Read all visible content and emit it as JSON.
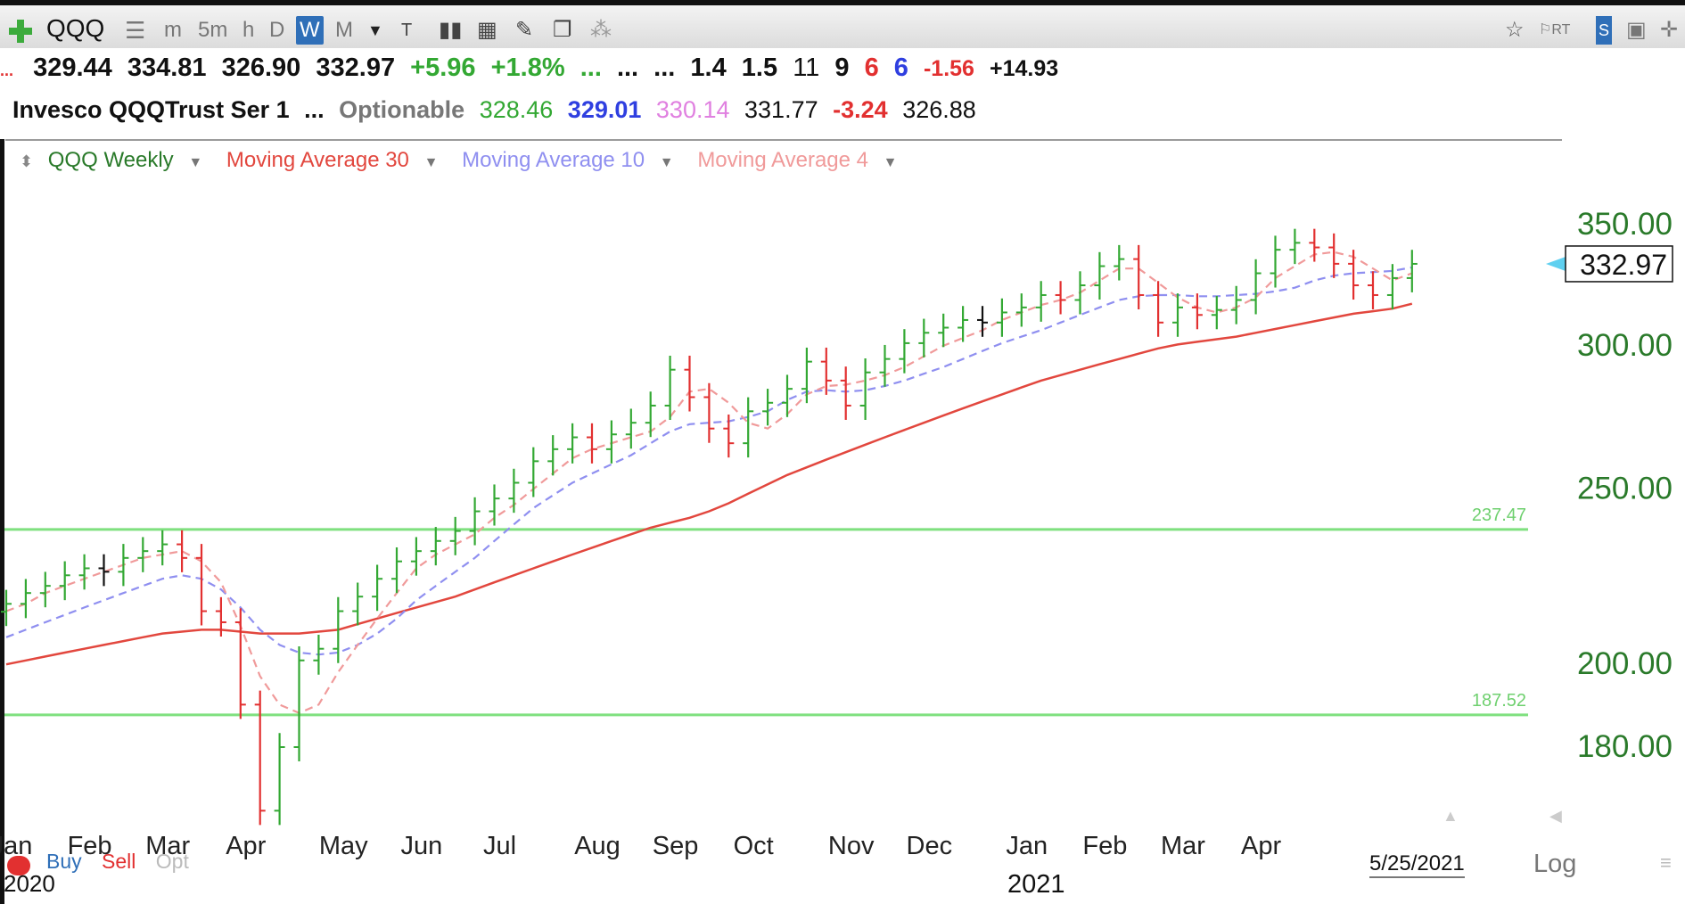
{
  "toolbar": {
    "symbol": "QQQ",
    "intervals": [
      "m",
      "5m",
      "h",
      "D",
      "W",
      "M"
    ],
    "active_interval": "W"
  },
  "quote_line1": {
    "open": "329.44",
    "high": "334.81",
    "low": "326.90",
    "close": "332.97",
    "change": "+5.96",
    "change_pct": "+1.8%",
    "dots1": "...",
    "dots2": "...",
    "dots3": "...",
    "v1": "1.4",
    "v2": "1.5",
    "v3": "11",
    "v4": "9",
    "v5": "6",
    "v6": "6",
    "v7": "-1.56",
    "v8": "+14.93"
  },
  "quote_line2": {
    "name": "Invesco QQQTrust Ser 1",
    "dots": "...",
    "optionable": "Optionable",
    "ma_a": "328.46",
    "ma_b": "329.01",
    "ma_c": "330.14",
    "v_d": "331.77",
    "v_e": "-3.24",
    "v_f": "326.88"
  },
  "legend": {
    "series": "QQQ Weekly",
    "ma30": "Moving Average 30",
    "ma10": "Moving Average 10",
    "ma4": "Moving Average 4"
  },
  "colors": {
    "up": "#33a833",
    "down": "#e23030",
    "neutral": "#111111",
    "ma30": "#e2473e",
    "ma10": "#8f8ff0",
    "ma4": "#f09a9a",
    "hline": "#7fe07f",
    "axis_label": "#2a7a2a"
  },
  "bottom": {
    "buy": "Buy",
    "sell": "Sell",
    "opt": "Opt",
    "date": "5/25/2021",
    "log": "Log",
    "year_left": "2020",
    "year_right": "2021"
  },
  "chart_data": {
    "type": "ohlc",
    "scale": "log",
    "y_ticks": [
      180,
      200,
      250,
      300,
      350
    ],
    "y_tick_labels": [
      "180.00",
      "200.00",
      "250.00",
      "300.00",
      "350.00"
    ],
    "last_price_label": "332.97",
    "last_price": 332.97,
    "horizontal_lines": [
      {
        "value": 237.47,
        "label": "237.47"
      },
      {
        "value": 187.52,
        "label": "187.52"
      }
    ],
    "x_month_labels": [
      "Jan",
      "Feb",
      "Mar",
      "Apr",
      "May",
      "Jun",
      "Jul",
      "Aug",
      "Sep",
      "Oct",
      "Nov",
      "Dec",
      "Jan",
      "Feb",
      "Mar",
      "Apr"
    ],
    "x_month_weeks": [
      0,
      4,
      8,
      12,
      17,
      21,
      25,
      30,
      34,
      38,
      43,
      47,
      52,
      56,
      60,
      64
    ],
    "closes": [
      216,
      219,
      221,
      224,
      226,
      225,
      229,
      231,
      233,
      229,
      214,
      211,
      190,
      166,
      180,
      201,
      204,
      214,
      218,
      223,
      228,
      231,
      234,
      237,
      243,
      247,
      252,
      259,
      263,
      267,
      263,
      268,
      272,
      278,
      291,
      281,
      270,
      265,
      276,
      279,
      284,
      294,
      287,
      278,
      290,
      295,
      301,
      305,
      307,
      310,
      309,
      313,
      315,
      320,
      318,
      324,
      332,
      335,
      320,
      309,
      315,
      312,
      314,
      318,
      329,
      339,
      342,
      340,
      333,
      324,
      320,
      327,
      332.97
    ],
    "ma30": [
      200.0,
      201.0,
      202.0,
      203.0,
      204.0,
      205.0,
      206.0,
      207.0,
      208.0,
      208.5,
      209.0,
      209.0,
      208.5,
      208.0,
      208.0,
      208.0,
      208.5,
      209.0,
      210.5,
      212.0,
      213.5,
      215.0,
      216.5,
      218.0,
      220.0,
      222.0,
      224.0,
      226.0,
      228.0,
      230.0,
      232.0,
      234.0,
      236.0,
      238.0,
      239.5,
      241.0,
      243.0,
      245.5,
      248.5,
      251.5,
      254.5,
      257.0,
      259.5,
      262.0,
      264.5,
      267.0,
      269.5,
      272.0,
      274.5,
      277.0,
      279.5,
      282.0,
      284.5,
      287.0,
      289.0,
      291.0,
      293.0,
      295.0,
      297.0,
      299.0,
      300.5,
      301.5,
      302.5,
      303.5,
      305.0,
      306.5,
      308.0,
      309.5,
      311.0,
      312.5,
      313.5,
      314.5,
      316.5
    ],
    "ma10": [
      207,
      209,
      211,
      213,
      215,
      217,
      219,
      221,
      223,
      224,
      223,
      220,
      215,
      209,
      205,
      203,
      202.5,
      203,
      205,
      208,
      212,
      217,
      221,
      225,
      229,
      234,
      239,
      244,
      248,
      252,
      255,
      258,
      261,
      265,
      269,
      271.5,
      272,
      272.5,
      274,
      276,
      280,
      283,
      283.5,
      283,
      283.5,
      285,
      287,
      289.5,
      292,
      295,
      298,
      301,
      303.5,
      306,
      309,
      312,
      315,
      318,
      319.5,
      320,
      320,
      319.5,
      319.5,
      320,
      320.5,
      321.5,
      323,
      326,
      328,
      329,
      329.5,
      330,
      331.5
    ],
    "ma4": [
      214,
      216,
      219,
      221,
      223,
      225,
      227,
      229,
      230,
      231,
      228,
      222,
      210,
      197,
      190,
      188,
      190,
      198,
      205,
      212,
      219,
      226,
      230,
      233,
      236,
      241,
      245,
      250,
      255,
      260,
      263,
      265,
      267,
      269,
      274,
      283,
      284,
      279,
      272,
      270,
      275,
      282,
      285,
      285.5,
      287,
      289,
      292,
      296,
      300,
      303,
      306,
      310,
      313,
      316,
      318,
      321,
      326,
      331,
      331,
      325,
      319,
      315,
      313,
      315,
      319,
      327,
      332,
      337,
      338,
      336,
      331,
      326,
      329
    ]
  }
}
